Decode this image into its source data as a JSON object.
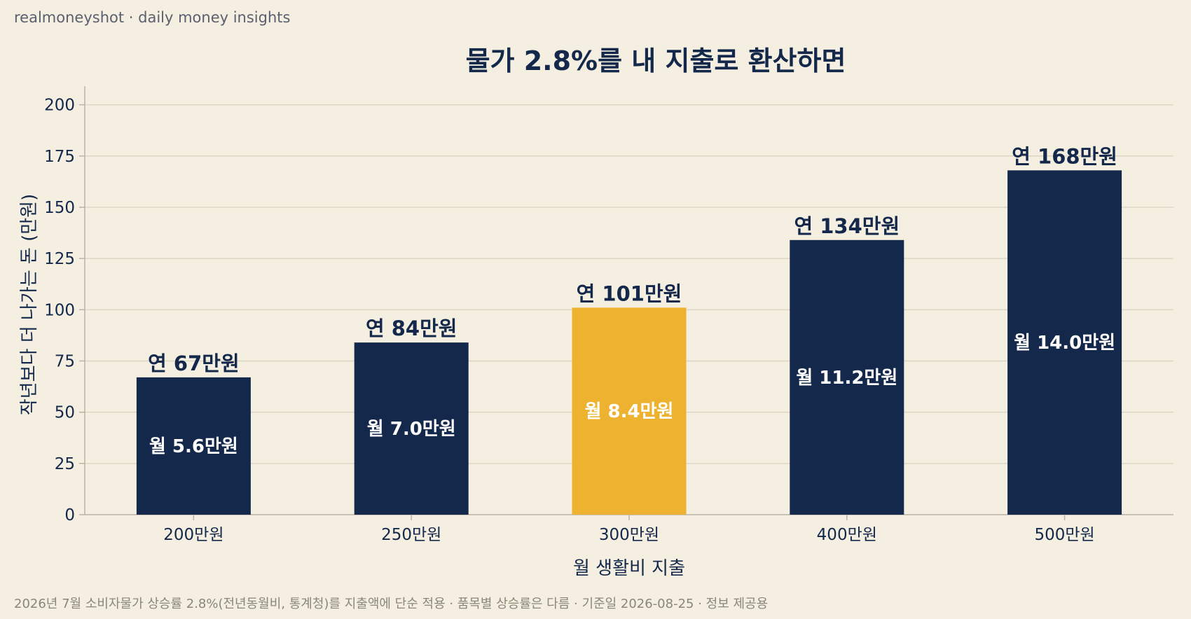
{
  "brand": "realmoneyshot · daily money insights",
  "footnote": "2026년 7월 소비자물가 상승률 2.8%(전년동월비, 통계청)를 지출액에 단순 적용 · 품목별 상승률은 다름 · 기준일 2026-08-25 · 정보 제공용",
  "colors": {
    "background": "#f4efe0",
    "bar": "#14284b",
    "highlight": "#edb230",
    "grid": "#ddd6c4",
    "axis": "#b8b3a4"
  },
  "chart_data": {
    "type": "bar",
    "title": "물가 2.8%를 내 지출로 환산하면",
    "xlabel": "월 생활비 지출",
    "ylabel": "작년보다 더 나가는 돈 (만원)",
    "categories": [
      "200만원",
      "250만원",
      "300만원",
      "400만원",
      "500만원"
    ],
    "values": [
      67,
      84,
      101,
      134,
      168
    ],
    "annual_labels": [
      "연 67만원",
      "연 84만원",
      "연 101만원",
      "연 134만원",
      "연 168만원"
    ],
    "monthly_labels": [
      "월 5.6만원",
      "월 7.0만원",
      "월 8.4만원",
      "월 11.2만원",
      "월 14.0만원"
    ],
    "highlight_category": "300만원",
    "ylim": [
      0,
      205
    ],
    "yticks": [
      0,
      25,
      50,
      75,
      100,
      125,
      150,
      175,
      200
    ],
    "grid": "horizontal"
  }
}
